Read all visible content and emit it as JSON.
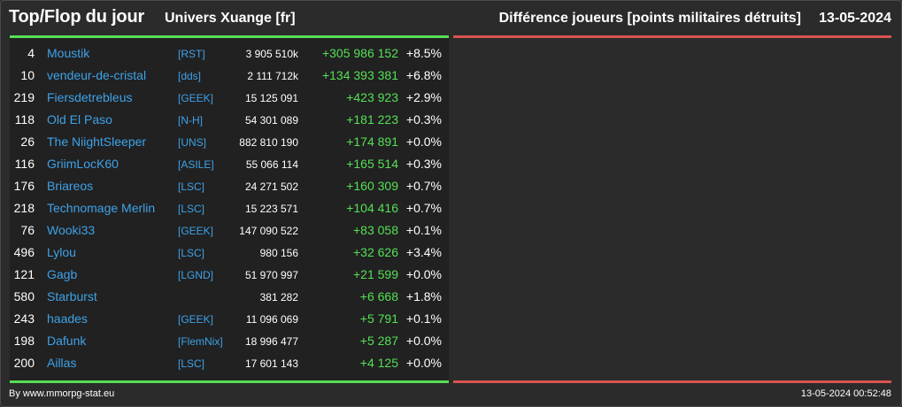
{
  "header": {
    "title": "Top/Flop du jour",
    "subtitle": "Univers Xuange [fr]",
    "right_title": "Différence joueurs [points militaires détruits]",
    "date": "13-05-2024"
  },
  "colors": {
    "background": "#2b2b2b",
    "panel": "#212121",
    "top_accent": "#55e055",
    "flop_accent": "#d9534f",
    "link": "#3ea2e8",
    "positive": "#55e055"
  },
  "top_rows": [
    {
      "rank": "4",
      "name": "Moustik",
      "alliance": "[RST]",
      "points": "3 905 510k",
      "diff": "+305 986 152",
      "pct": "+8.5%"
    },
    {
      "rank": "10",
      "name": "vendeur-de-cristal",
      "alliance": "[dds]",
      "points": "2 111 712k",
      "diff": "+134 393 381",
      "pct": "+6.8%"
    },
    {
      "rank": "219",
      "name": "Fiersdetrebleus",
      "alliance": "[GEEK]",
      "points": "15 125 091",
      "diff": "+423 923",
      "pct": "+2.9%"
    },
    {
      "rank": "118",
      "name": "Old El Paso",
      "alliance": "[N-H]",
      "points": "54 301 089",
      "diff": "+181 223",
      "pct": "+0.3%"
    },
    {
      "rank": "26",
      "name": "The NiightSleeper",
      "alliance": "[UNS]",
      "points": "882 810 190",
      "diff": "+174 891",
      "pct": "+0.0%"
    },
    {
      "rank": "116",
      "name": "GriimLocK60",
      "alliance": "[ASILE]",
      "points": "55 066 114",
      "diff": "+165 514",
      "pct": "+0.3%"
    },
    {
      "rank": "176",
      "name": "Briareos",
      "alliance": "[LSC]",
      "points": "24 271 502",
      "diff": "+160 309",
      "pct": "+0.7%"
    },
    {
      "rank": "218",
      "name": "Technomage Merlin",
      "alliance": "[LSC]",
      "points": "15 223 571",
      "diff": "+104 416",
      "pct": "+0.7%"
    },
    {
      "rank": "76",
      "name": "Wooki33",
      "alliance": "[GEEK]",
      "points": "147 090 522",
      "diff": "+83 058",
      "pct": "+0.1%"
    },
    {
      "rank": "496",
      "name": "Lylou",
      "alliance": "[LSC]",
      "points": "980 156",
      "diff": "+32 626",
      "pct": "+3.4%"
    },
    {
      "rank": "121",
      "name": "Gagb",
      "alliance": "[LGND]",
      "points": "51 970 997",
      "diff": "+21 599",
      "pct": "+0.0%"
    },
    {
      "rank": "580",
      "name": "Starburst",
      "alliance": "",
      "points": "381 282",
      "diff": "+6 668",
      "pct": "+1.8%"
    },
    {
      "rank": "243",
      "name": "haades",
      "alliance": "[GEEK]",
      "points": "11 096 069",
      "diff": "+5 791",
      "pct": "+0.1%"
    },
    {
      "rank": "198",
      "name": "Dafunk",
      "alliance": "[FlemNix]",
      "points": "18 996 477",
      "diff": "+5 287",
      "pct": "+0.0%"
    },
    {
      "rank": "200",
      "name": "Aillas",
      "alliance": "[LSC]",
      "points": "17 601 143",
      "diff": "+4 125",
      "pct": "+0.0%"
    }
  ],
  "footer": {
    "credit": "By www.mmorpg-stat.eu",
    "timestamp": "13-05-2024 00:52:48"
  }
}
